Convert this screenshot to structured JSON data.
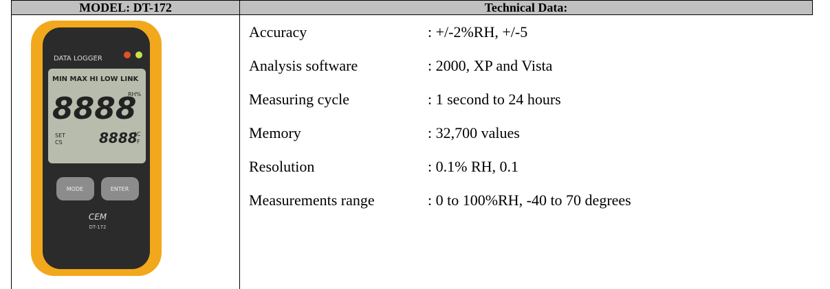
{
  "header": {
    "model": "MODEL: DT-172",
    "technical": "Technical Data:"
  },
  "device": {
    "brand_label": "DATA LOGGER",
    "modes": "MIN MAX HI LOW LINK",
    "main_digits": "8888",
    "rh_unit": "RH%",
    "set": "SET",
    "cs": "CS",
    "temp_digits": "8888",
    "celsius": "°C",
    "fahrenheit": "°F",
    "mode_button": "MODE",
    "enter_button": "ENTER",
    "logo": "CEM",
    "model_plate": "DT-172"
  },
  "rows": [
    {
      "label": "Accuracy",
      "value": ": +/-2%RH, +/-5"
    },
    {
      "label": "Analysis software",
      "value": ": 2000, XP and Vista"
    },
    {
      "label": "Measuring cycle",
      "value": ": 1 second to 24 hours"
    },
    {
      "label": "Memory",
      "value": ": 32,700 values"
    },
    {
      "label": "Resolution",
      "value": ": 0.1% RH, 0.1"
    },
    {
      "label": "Measurements range",
      "value": ": 0 to 100%RH, -40 to 70 degrees"
    }
  ]
}
